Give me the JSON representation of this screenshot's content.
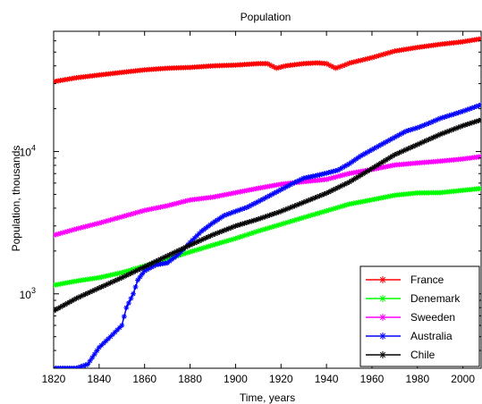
{
  "chart_data": {
    "type": "line",
    "title": "Population",
    "xlabel": "Time, years",
    "ylabel": "Population, thousands",
    "xlim": [
      1820,
      2008
    ],
    "ylim": [
      300,
      70000
    ],
    "yscale": "log",
    "grid": false,
    "legend_position": "bottom-right",
    "x_ticks": [
      1820,
      1840,
      1860,
      1880,
      1900,
      1920,
      1940,
      1960,
      1980,
      2000
    ],
    "y_ticks": [
      {
        "value": 1000,
        "base": "10",
        "exp": "3"
      },
      {
        "value": 10000,
        "base": "10",
        "exp": "4"
      }
    ],
    "series": [
      {
        "name": "France",
        "color": "#ff0000",
        "points": [
          [
            1820,
            31000
          ],
          [
            1830,
            33000
          ],
          [
            1840,
            34500
          ],
          [
            1850,
            36000
          ],
          [
            1860,
            37500
          ],
          [
            1870,
            38500
          ],
          [
            1880,
            39000
          ],
          [
            1890,
            40000
          ],
          [
            1900,
            40500
          ],
          [
            1910,
            41500
          ],
          [
            1914,
            41500
          ],
          [
            1918,
            38500
          ],
          [
            1922,
            40000
          ],
          [
            1930,
            41500
          ],
          [
            1936,
            42000
          ],
          [
            1940,
            41500
          ],
          [
            1944,
            38500
          ],
          [
            1948,
            40500
          ],
          [
            1950,
            41800
          ],
          [
            1960,
            45700
          ],
          [
            1970,
            50800
          ],
          [
            1980,
            53900
          ],
          [
            1990,
            56700
          ],
          [
            2000,
            59100
          ],
          [
            2008,
            62000
          ]
        ]
      },
      {
        "name": "Denemark",
        "color": "#00ff00",
        "points": [
          [
            1820,
            1150
          ],
          [
            1830,
            1230
          ],
          [
            1840,
            1300
          ],
          [
            1850,
            1410
          ],
          [
            1860,
            1570
          ],
          [
            1870,
            1760
          ],
          [
            1880,
            1970
          ],
          [
            1890,
            2200
          ],
          [
            1900,
            2450
          ],
          [
            1910,
            2760
          ],
          [
            1920,
            3080
          ],
          [
            1930,
            3440
          ],
          [
            1940,
            3830
          ],
          [
            1950,
            4270
          ],
          [
            1960,
            4580
          ],
          [
            1970,
            4930
          ],
          [
            1980,
            5120
          ],
          [
            1990,
            5140
          ],
          [
            2000,
            5340
          ],
          [
            2008,
            5500
          ]
        ]
      },
      {
        "name": "Sweeden",
        "color": "#ff00ff",
        "points": [
          [
            1820,
            2580
          ],
          [
            1830,
            2860
          ],
          [
            1840,
            3140
          ],
          [
            1850,
            3480
          ],
          [
            1860,
            3860
          ],
          [
            1870,
            4160
          ],
          [
            1880,
            4570
          ],
          [
            1890,
            4780
          ],
          [
            1900,
            5140
          ],
          [
            1910,
            5520
          ],
          [
            1920,
            5900
          ],
          [
            1930,
            6140
          ],
          [
            1940,
            6370
          ],
          [
            1950,
            7010
          ],
          [
            1960,
            7480
          ],
          [
            1970,
            8040
          ],
          [
            1980,
            8310
          ],
          [
            1990,
            8560
          ],
          [
            2000,
            8870
          ],
          [
            2008,
            9220
          ]
        ]
      },
      {
        "name": "Australia",
        "color": "#0000ff",
        "points": [
          [
            1820,
            300
          ],
          [
            1830,
            300
          ],
          [
            1835,
            320
          ],
          [
            1840,
            420
          ],
          [
            1845,
            500
          ],
          [
            1850,
            600
          ],
          [
            1852,
            800
          ],
          [
            1855,
            1000
          ],
          [
            1857,
            1250
          ],
          [
            1860,
            1450
          ],
          [
            1865,
            1600
          ],
          [
            1870,
            1650
          ],
          [
            1875,
            1900
          ],
          [
            1880,
            2300
          ],
          [
            1885,
            2750
          ],
          [
            1890,
            3150
          ],
          [
            1895,
            3550
          ],
          [
            1900,
            3800
          ],
          [
            1905,
            4050
          ],
          [
            1910,
            4450
          ],
          [
            1915,
            4900
          ],
          [
            1920,
            5400
          ],
          [
            1925,
            5950
          ],
          [
            1930,
            6500
          ],
          [
            1935,
            6750
          ],
          [
            1940,
            7050
          ],
          [
            1945,
            7400
          ],
          [
            1950,
            8200
          ],
          [
            1955,
            9300
          ],
          [
            1960,
            10300
          ],
          [
            1965,
            11400
          ],
          [
            1970,
            12600
          ],
          [
            1975,
            13900
          ],
          [
            1980,
            14700
          ],
          [
            1985,
            15800
          ],
          [
            1990,
            17100
          ],
          [
            1995,
            18100
          ],
          [
            2000,
            19200
          ],
          [
            2008,
            21300
          ]
        ]
      },
      {
        "name": "Chile",
        "color": "#000000",
        "points": [
          [
            1820,
            760
          ],
          [
            1830,
            930
          ],
          [
            1840,
            1100
          ],
          [
            1850,
            1300
          ],
          [
            1860,
            1550
          ],
          [
            1870,
            1850
          ],
          [
            1880,
            2200
          ],
          [
            1890,
            2600
          ],
          [
            1900,
            3000
          ],
          [
            1910,
            3350
          ],
          [
            1920,
            3800
          ],
          [
            1930,
            4400
          ],
          [
            1940,
            5100
          ],
          [
            1950,
            6100
          ],
          [
            1960,
            7600
          ],
          [
            1970,
            9500
          ],
          [
            1980,
            11200
          ],
          [
            1990,
            13200
          ],
          [
            2000,
            15200
          ],
          [
            2008,
            16700
          ]
        ]
      }
    ]
  }
}
